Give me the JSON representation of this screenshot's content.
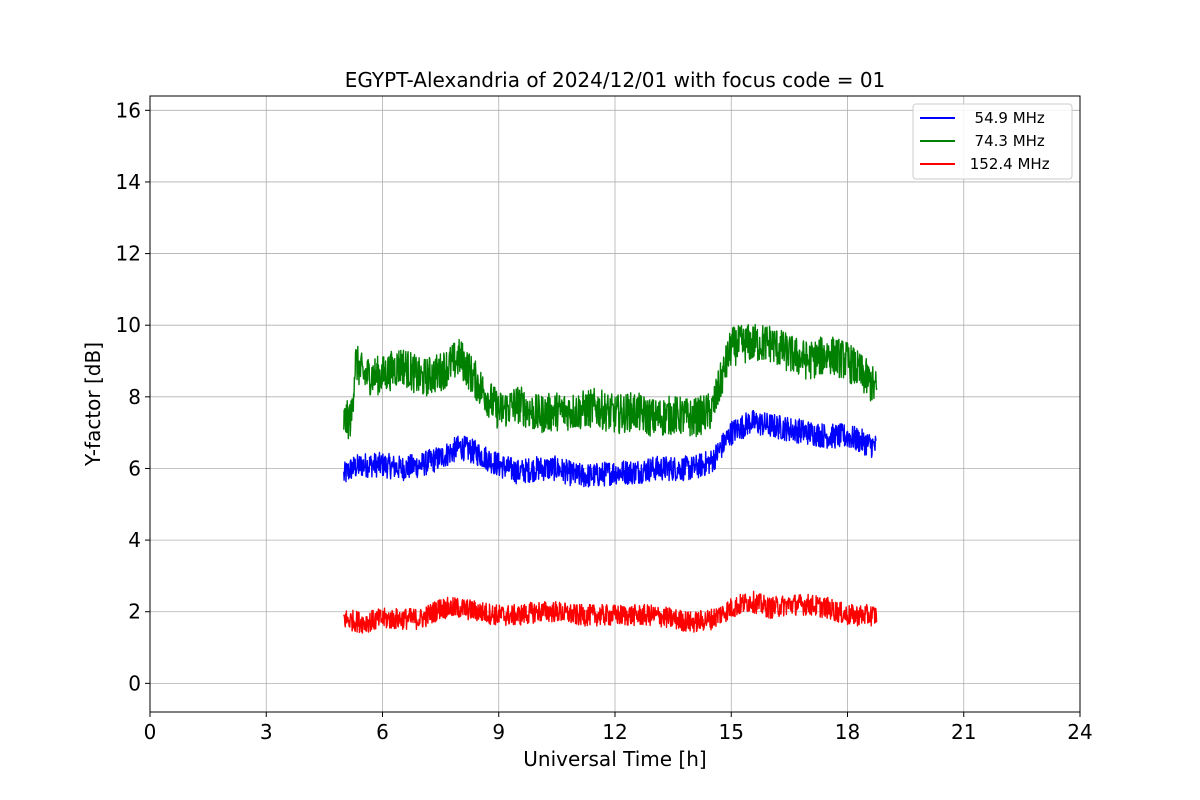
{
  "chart_data": {
    "type": "line",
    "title": "EGYPT-Alexandria of 2024/12/01 with focus code = 01",
    "xlabel": "Universal Time [h]",
    "ylabel": "Y-factor [dB]",
    "xlim": [
      0,
      24
    ],
    "ylim": [
      -0.8,
      16.4
    ],
    "xticks": [
      0,
      3,
      6,
      9,
      12,
      15,
      18,
      21,
      24
    ],
    "yticks": [
      0,
      2,
      4,
      6,
      8,
      10,
      12,
      14,
      16
    ],
    "grid": true,
    "legend_position": "top-right",
    "series": [
      {
        "name": "  54.9 MHz",
        "color": "#0000ff",
        "x": [
          5.0,
          5.2,
          5.5,
          6.0,
          6.5,
          7.0,
          7.5,
          8.0,
          8.5,
          9.0,
          9.5,
          10.0,
          10.5,
          11.0,
          11.5,
          12.0,
          12.5,
          13.0,
          13.5,
          14.0,
          14.5,
          15.0,
          15.5,
          16.0,
          16.5,
          17.0,
          17.5,
          18.0,
          18.5,
          18.75
        ],
        "y": [
          5.8,
          6.0,
          6.1,
          6.1,
          6.0,
          6.1,
          6.3,
          6.6,
          6.4,
          6.1,
          5.9,
          6.0,
          6.0,
          5.8,
          5.8,
          5.9,
          5.9,
          6.0,
          6.0,
          6.0,
          6.2,
          7.0,
          7.3,
          7.2,
          7.1,
          7.0,
          6.9,
          6.9,
          6.7,
          6.6
        ]
      },
      {
        "name": "  74.3 MHz",
        "color": "#008000",
        "x": [
          5.0,
          5.2,
          5.3,
          5.5,
          6.0,
          6.5,
          7.0,
          7.5,
          8.0,
          8.5,
          9.0,
          9.5,
          10.0,
          10.5,
          11.0,
          11.5,
          12.0,
          12.5,
          13.0,
          13.5,
          14.0,
          14.5,
          15.0,
          15.5,
          16.0,
          16.5,
          17.0,
          17.5,
          18.0,
          18.5,
          18.75
        ],
        "y": [
          7.3,
          7.4,
          9.0,
          8.6,
          8.6,
          8.9,
          8.5,
          8.7,
          9.1,
          8.3,
          7.6,
          7.8,
          7.5,
          7.6,
          7.6,
          7.7,
          7.5,
          7.6,
          7.4,
          7.5,
          7.4,
          7.6,
          9.4,
          9.5,
          9.5,
          9.2,
          9.0,
          9.2,
          9.0,
          8.5,
          8.2
        ]
      },
      {
        "name": " 152.4 MHz",
        "color": "#ff0000",
        "x": [
          5.0,
          5.5,
          6.0,
          6.5,
          7.0,
          7.5,
          8.0,
          8.5,
          9.0,
          9.5,
          10.0,
          10.5,
          11.0,
          11.5,
          12.0,
          12.5,
          13.0,
          13.5,
          14.0,
          14.5,
          15.0,
          15.5,
          16.0,
          16.5,
          17.0,
          17.5,
          18.0,
          18.5,
          18.75
        ],
        "y": [
          1.8,
          1.7,
          1.8,
          1.8,
          1.8,
          2.1,
          2.1,
          2.0,
          1.9,
          1.9,
          2.0,
          2.0,
          1.9,
          1.9,
          1.9,
          1.9,
          1.9,
          1.8,
          1.7,
          1.8,
          2.1,
          2.3,
          2.1,
          2.2,
          2.2,
          2.1,
          1.9,
          1.9,
          1.9
        ]
      }
    ]
  }
}
